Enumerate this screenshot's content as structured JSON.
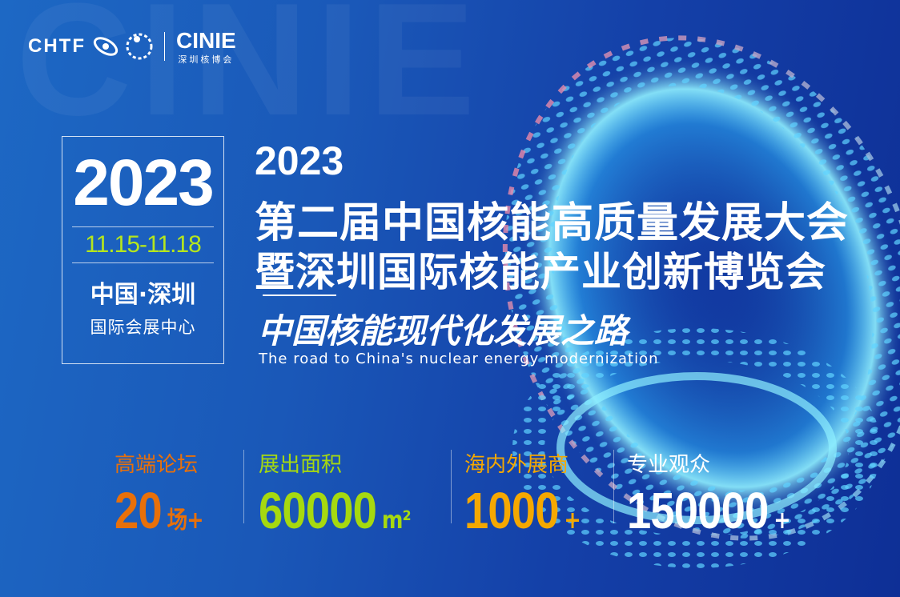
{
  "background_word": "CINIE",
  "logos": {
    "chtf": "CHTF",
    "cinie": "CINIE",
    "cinie_sub": "深圳核博会"
  },
  "datebox": {
    "year": "2023",
    "dates": "11.15-11.18",
    "city": "中国·深圳",
    "venue": "国际会展中心"
  },
  "title": {
    "year": "2023",
    "line1": "第二届中国核能高质量发展大会",
    "line2": "暨深圳国际核能产业创新博览会"
  },
  "subtitle": "中国核能现代化发展之路",
  "english": "The road   to China's nuclear energy modernization",
  "stats": [
    {
      "label": "高端论坛",
      "value": "20",
      "unit": "场+",
      "color": "#e8700a"
    },
    {
      "label": "展出面积",
      "value": "60000",
      "unit": "m²",
      "color": "#a6d90f"
    },
    {
      "label": "海内外展商",
      "value": "1000",
      "unit": "+",
      "color": "#f5a800"
    },
    {
      "label": "专业观众",
      "value": "150000",
      "unit": "+",
      "color": "#ffffff"
    }
  ]
}
